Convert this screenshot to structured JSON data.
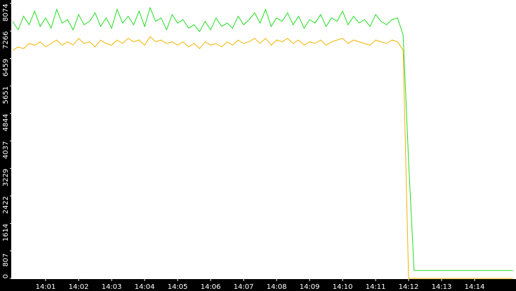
{
  "chart_data": {
    "type": "line",
    "categories": [
      null,
      null,
      null,
      null,
      null,
      null,
      "14:01",
      null,
      null,
      null,
      null,
      null,
      "14:02",
      null,
      null,
      null,
      null,
      null,
      "14:03",
      null,
      null,
      null,
      null,
      null,
      "14:04",
      null,
      null,
      null,
      null,
      null,
      "14:05",
      null,
      null,
      null,
      null,
      null,
      "14:06",
      null,
      null,
      null,
      null,
      null,
      "14:07",
      null,
      null,
      null,
      null,
      null,
      "14:08",
      null,
      null,
      null,
      null,
      null,
      "14:09",
      null,
      null,
      null,
      null,
      null,
      "14:10",
      null,
      null,
      null,
      null,
      null,
      "14:11",
      null,
      null,
      null,
      null,
      null,
      "14:12",
      null,
      null,
      null,
      null,
      null,
      "14:13",
      null,
      null,
      null,
      null,
      null,
      "14:14",
      null,
      null,
      null,
      null,
      null,
      null,
      null
    ],
    "series": [
      {
        "color": "#22dd22",
        "values": [
          7550,
          7300,
          7700,
          7450,
          7850,
          7400,
          7650,
          7350,
          7900,
          7500,
          7600,
          7300,
          7750,
          7450,
          7550,
          7800,
          7400,
          7650,
          7350,
          7900,
          7500,
          7700,
          7450,
          7850,
          7400,
          7950,
          7550,
          7650,
          7300,
          7750,
          7500,
          7600,
          7350,
          7450,
          7250,
          7550,
          7300,
          7650,
          7400,
          7500,
          7350,
          7700,
          7450,
          7600,
          7800,
          7500,
          7900,
          7400,
          7650,
          7550,
          7800,
          7450,
          7700,
          7350,
          7600,
          7500,
          7750,
          7400,
          7650,
          7550,
          7850,
          7450,
          7700,
          7500,
          7600,
          7400,
          7750,
          7550,
          7450,
          7600,
          7650,
          7150,
          3450,
          230,
          230,
          230,
          230,
          230,
          230,
          230,
          230,
          230,
          230,
          230,
          230,
          230,
          230,
          230,
          230,
          230,
          230,
          230
        ]
      },
      {
        "color": "#f0b400",
        "values": [
          6700,
          6800,
          6750,
          6900,
          6850,
          6950,
          6800,
          6900,
          7000,
          6850,
          6950,
          6850,
          7050,
          6900,
          6950,
          6800,
          7000,
          6900,
          6850,
          7000,
          6900,
          7050,
          6950,
          7000,
          6850,
          7100,
          6950,
          7000,
          6900,
          6950,
          6850,
          6950,
          6800,
          6900,
          6750,
          6950,
          6850,
          6900,
          6800,
          6950,
          6850,
          7000,
          6900,
          6950,
          7050,
          6900,
          7050,
          6850,
          7000,
          6950,
          7050,
          6900,
          7000,
          6850,
          6950,
          6900,
          7000,
          6850,
          6950,
          7000,
          7050,
          6900,
          7000,
          6950,
          6900,
          6850,
          7000,
          6950,
          6900,
          7000,
          6950,
          6700,
          0,
          0,
          0,
          0,
          0,
          0,
          0,
          0,
          0,
          0,
          0,
          0,
          0,
          0,
          0,
          0,
          0,
          0,
          0,
          0
        ]
      }
    ],
    "ylim": [
      0,
      8074
    ],
    "yticks": [
      0,
      807,
      1614,
      2422,
      3229,
      4037,
      4844,
      5651,
      6459,
      7266,
      8074
    ]
  }
}
